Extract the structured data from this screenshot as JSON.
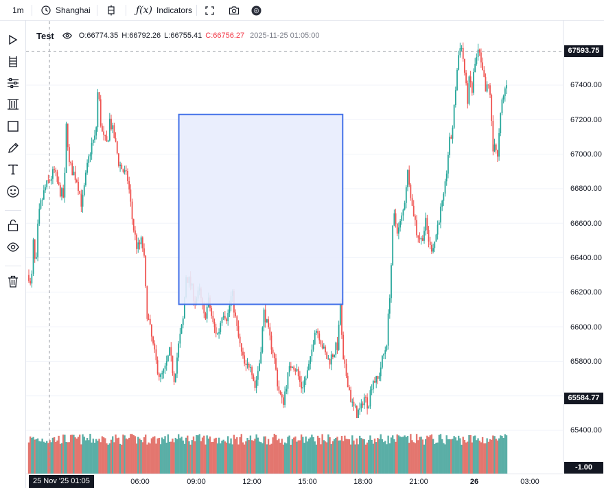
{
  "toolbar": {
    "interval": "1m",
    "timezone": "Shanghai",
    "indicators_label": "Indicators",
    "icons": [
      "clock-icon",
      "chart-type-icon",
      "function-icon",
      "fullscreen-icon",
      "camera-icon",
      "record-icon"
    ]
  },
  "left_tools": [
    "cursor-icon",
    "fib-retracement-icon",
    "settings-sliders-icon",
    "pattern-icon",
    "rectangle-icon",
    "pencil-icon",
    "text-icon",
    "emoji-icon",
    "lock-icon",
    "eye-icon",
    "trash-icon"
  ],
  "legend": {
    "symbol": "Test",
    "open_label": "O:",
    "open": "66774.35",
    "high_label": "H:",
    "high": "66792.26",
    "low_label": "L:",
    "low": "66755.41",
    "close_label": "C:",
    "close": "66756.27",
    "timestamp": "2025-11-25 01:05:00"
  },
  "price_axis": {
    "ticks": [
      "67400.00",
      "67200.00",
      "67000.00",
      "66800.00",
      "66600.00",
      "66400.00",
      "66200.00",
      "66000.00",
      "65800.00",
      "65400.00"
    ],
    "crosshair_price": "67593.75",
    "low_label": "65584.77",
    "volume_label": "-1.00"
  },
  "time_axis": {
    "ticks": [
      "06:00",
      "09:00",
      "12:00",
      "15:00",
      "18:00",
      "21:00",
      "26",
      "03:00"
    ],
    "crosshair_time": "25 Nov '25   01:05"
  },
  "colors": {
    "up": "#26a69a",
    "down": "#ef5350",
    "vol_up": "#5aaea6",
    "vol_down": "#e3766f",
    "rect_border": "#4472e8",
    "rect_fill": "#e8ecfd",
    "grid": "#f0f3fa",
    "crosshair": "#9598a1"
  },
  "chart_data": {
    "type": "candlestick",
    "y_range": [
      65300,
      67700
    ],
    "path": [
      [
        0,
        66300
      ],
      [
        2,
        66200
      ],
      [
        4,
        66500
      ],
      [
        6,
        66300
      ],
      [
        8,
        66600
      ],
      [
        10,
        66700
      ],
      [
        14,
        66800
      ],
      [
        18,
        66850
      ],
      [
        22,
        66900
      ],
      [
        26,
        66800
      ],
      [
        30,
        66750
      ],
      [
        32,
        66950
      ],
      [
        33,
        67420
      ],
      [
        34,
        66950
      ],
      [
        38,
        66900
      ],
      [
        42,
        66850
      ],
      [
        46,
        66700
      ],
      [
        50,
        66900
      ],
      [
        54,
        67050
      ],
      [
        58,
        67100
      ],
      [
        60,
        67400
      ],
      [
        62,
        67200
      ],
      [
        64,
        67100
      ],
      [
        68,
        67050
      ],
      [
        70,
        67200
      ],
      [
        74,
        67100
      ],
      [
        78,
        66950
      ],
      [
        82,
        66900
      ],
      [
        86,
        66850
      ],
      [
        90,
        66600
      ],
      [
        94,
        66450
      ],
      [
        98,
        66500
      ],
      [
        100,
        66380
      ],
      [
        102,
        66100
      ],
      [
        106,
        65950
      ],
      [
        110,
        65800
      ],
      [
        114,
        65700
      ],
      [
        118,
        65750
      ],
      [
        122,
        65850
      ],
      [
        126,
        65700
      ],
      [
        130,
        65900
      ],
      [
        134,
        66050
      ],
      [
        136,
        66300
      ],
      [
        140,
        66250
      ],
      [
        144,
        66150
      ],
      [
        148,
        66200
      ],
      [
        152,
        66050
      ],
      [
        156,
        66150
      ],
      [
        160,
        66000
      ],
      [
        164,
        65950
      ],
      [
        168,
        66100
      ],
      [
        172,
        66050
      ],
      [
        176,
        66200
      ],
      [
        180,
        66000
      ],
      [
        184,
        65850
      ],
      [
        188,
        65750
      ],
      [
        192,
        65800
      ],
      [
        196,
        65650
      ],
      [
        200,
        65800
      ],
      [
        204,
        66100
      ],
      [
        208,
        65950
      ],
      [
        212,
        65850
      ],
      [
        216,
        65650
      ],
      [
        220,
        65550
      ],
      [
        224,
        65700
      ],
      [
        228,
        65800
      ],
      [
        232,
        65750
      ],
      [
        236,
        65650
      ],
      [
        240,
        65700
      ],
      [
        244,
        65800
      ],
      [
        248,
        66000
      ],
      [
        252,
        65950
      ],
      [
        256,
        65850
      ],
      [
        260,
        65800
      ],
      [
        264,
        65850
      ],
      [
        268,
        65900
      ],
      [
        270,
        66150
      ],
      [
        272,
        65800
      ],
      [
        276,
        65700
      ],
      [
        280,
        65550
      ],
      [
        284,
        65500
      ],
      [
        288,
        65520
      ],
      [
        290,
        65600
      ],
      [
        294,
        65550
      ],
      [
        298,
        65700
      ],
      [
        302,
        65680
      ],
      [
        306,
        65800
      ],
      [
        310,
        65900
      ],
      [
        312,
        66100
      ],
      [
        314,
        66350
      ],
      [
        316,
        66650
      ],
      [
        320,
        66550
      ],
      [
        324,
        66650
      ],
      [
        326,
        66750
      ],
      [
        328,
        66900
      ],
      [
        330,
        66850
      ],
      [
        332,
        66700
      ],
      [
        334,
        66650
      ],
      [
        336,
        66550
      ],
      [
        340,
        66500
      ],
      [
        344,
        66600
      ],
      [
        348,
        66450
      ],
      [
        352,
        66500
      ],
      [
        356,
        66650
      ],
      [
        360,
        66750
      ],
      [
        362,
        66900
      ],
      [
        364,
        67050
      ],
      [
        366,
        67100
      ],
      [
        368,
        67200
      ],
      [
        370,
        67400
      ],
      [
        372,
        67550
      ],
      [
        374,
        67650
      ],
      [
        376,
        67580
      ],
      [
        378,
        67450
      ],
      [
        380,
        67300
      ],
      [
        382,
        67450
      ],
      [
        384,
        67350
      ],
      [
        386,
        67500
      ],
      [
        388,
        67550
      ],
      [
        390,
        67600
      ],
      [
        392,
        67500
      ],
      [
        394,
        67450
      ],
      [
        396,
        67350
      ],
      [
        398,
        67400
      ],
      [
        400,
        67350
      ],
      [
        402,
        67000
      ],
      [
        404,
        67100
      ],
      [
        406,
        66950
      ],
      [
        408,
        67150
      ],
      [
        410,
        67300
      ],
      [
        412,
        67350
      ],
      [
        414,
        67420
      ]
    ],
    "drawing": {
      "type": "rectangle",
      "bar_start": 130,
      "bar_end": 272,
      "price_top": 67230,
      "price_bottom": 66130
    }
  }
}
